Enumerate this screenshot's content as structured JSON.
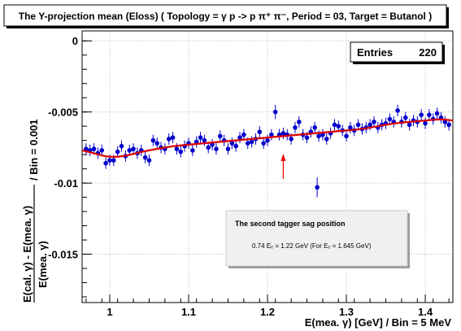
{
  "title": "The Y-projection mean (Eloss) ( Topology = γ p -> p π⁺ π⁻, Period = 03, Target = Butanol )",
  "stats": {
    "label": "Entries",
    "value": "220"
  },
  "annotation": {
    "title": "The second tagger sag position",
    "body": "0.74 Eₑ = 1.22 GeV (For Eₑ = 1.645 GeV)"
  },
  "colors": {
    "points": "#0000cc",
    "fit": "#dd0000",
    "arrow": "#ee0000",
    "grid": "#bbbbbb"
  },
  "chart_data": {
    "type": "scatter",
    "xlabel": "E(mea. γ) [GeV] / Bin = 5 MeV",
    "ylabel_numerator": "E(cal. γ) - E(mea. γ)",
    "ylabel_denominator": "E(mea. γ)",
    "ylabel_suffix": "/ Bin = 0.001",
    "xlim": [
      0.965,
      1.435
    ],
    "ylim": [
      -0.0184,
      0.0007
    ],
    "xticks": [
      1,
      1.1,
      1.2,
      1.3,
      1.4
    ],
    "xtick_labels": [
      "1",
      "1.1",
      "1.2",
      "1.3",
      "1.4"
    ],
    "yticks": [
      0,
      -0.005,
      -0.01,
      -0.015
    ],
    "ytick_labels": [
      "0",
      "-0.005",
      "-0.01",
      "-0.015"
    ],
    "grid": true,
    "arrow_x": 1.22,
    "outlier": {
      "x": 1.263,
      "y": -0.0103,
      "err": 0.0007
    },
    "points": [
      [
        0.97,
        -0.0076,
        0.0004
      ],
      [
        0.975,
        -0.0077,
        0.0004
      ],
      [
        0.98,
        -0.0076,
        0.0004
      ],
      [
        0.985,
        -0.0079,
        0.0004
      ],
      [
        0.99,
        -0.0077,
        0.0004
      ],
      [
        0.995,
        -0.0086,
        0.0004
      ],
      [
        1.0,
        -0.0084,
        0.0004
      ],
      [
        1.005,
        -0.0084,
        0.0004
      ],
      [
        1.01,
        -0.0078,
        0.0004
      ],
      [
        1.015,
        -0.0074,
        0.0004
      ],
      [
        1.02,
        -0.0081,
        0.0004
      ],
      [
        1.025,
        -0.0077,
        0.0004
      ],
      [
        1.03,
        -0.0076,
        0.0004
      ],
      [
        1.035,
        -0.0079,
        0.0004
      ],
      [
        1.04,
        -0.0077,
        0.0004
      ],
      [
        1.045,
        -0.0082,
        0.0004
      ],
      [
        1.05,
        -0.0084,
        0.0004
      ],
      [
        1.055,
        -0.007,
        0.0004
      ],
      [
        1.06,
        -0.0072,
        0.0004
      ],
      [
        1.065,
        -0.0075,
        0.0004
      ],
      [
        1.07,
        -0.0076,
        0.0004
      ],
      [
        1.075,
        -0.0069,
        0.0004
      ],
      [
        1.08,
        -0.0068,
        0.0004
      ],
      [
        1.085,
        -0.0076,
        0.0004
      ],
      [
        1.09,
        -0.0078,
        0.0004
      ],
      [
        1.095,
        -0.0074,
        0.0004
      ],
      [
        1.1,
        -0.0072,
        0.0004
      ],
      [
        1.105,
        -0.0077,
        0.0004
      ],
      [
        1.11,
        -0.0071,
        0.0004
      ],
      [
        1.115,
        -0.0068,
        0.0004
      ],
      [
        1.12,
        -0.007,
        0.0004
      ],
      [
        1.125,
        -0.0075,
        0.0004
      ],
      [
        1.13,
        -0.0073,
        0.0004
      ],
      [
        1.135,
        -0.0076,
        0.0004
      ],
      [
        1.14,
        -0.0067,
        0.0004
      ],
      [
        1.145,
        -0.007,
        0.0004
      ],
      [
        1.15,
        -0.0076,
        0.0004
      ],
      [
        1.155,
        -0.0072,
        0.0004
      ],
      [
        1.16,
        -0.0074,
        0.0004
      ],
      [
        1.165,
        -0.0068,
        0.0004
      ],
      [
        1.17,
        -0.0066,
        0.0004
      ],
      [
        1.175,
        -0.0072,
        0.0004
      ],
      [
        1.18,
        -0.0071,
        0.0004
      ],
      [
        1.185,
        -0.0069,
        0.0004
      ],
      [
        1.19,
        -0.0064,
        0.0004
      ],
      [
        1.195,
        -0.0072,
        0.0004
      ],
      [
        1.2,
        -0.007,
        0.0004
      ],
      [
        1.205,
        -0.0066,
        0.0004
      ],
      [
        1.21,
        -0.005,
        0.0005
      ],
      [
        1.215,
        -0.0066,
        0.0004
      ],
      [
        1.22,
        -0.0065,
        0.0004
      ],
      [
        1.225,
        -0.0066,
        0.0004
      ],
      [
        1.23,
        -0.0069,
        0.0004
      ],
      [
        1.235,
        -0.0061,
        0.0004
      ],
      [
        1.24,
        -0.0057,
        0.0004
      ],
      [
        1.245,
        -0.0066,
        0.0004
      ],
      [
        1.25,
        -0.0068,
        0.0004
      ],
      [
        1.255,
        -0.0064,
        0.0004
      ],
      [
        1.26,
        -0.0061,
        0.0004
      ],
      [
        1.265,
        -0.0067,
        0.0004
      ],
      [
        1.27,
        -0.0066,
        0.0004
      ],
      [
        1.275,
        -0.0069,
        0.0004
      ],
      [
        1.28,
        -0.0065,
        0.0004
      ],
      [
        1.285,
        -0.0059,
        0.0004
      ],
      [
        1.29,
        -0.006,
        0.0004
      ],
      [
        1.295,
        -0.0063,
        0.0004
      ],
      [
        1.3,
        -0.0067,
        0.0004
      ],
      [
        1.305,
        -0.0061,
        0.0004
      ],
      [
        1.31,
        -0.0063,
        0.0004
      ],
      [
        1.315,
        -0.0059,
        0.0004
      ],
      [
        1.32,
        -0.0062,
        0.0004
      ],
      [
        1.325,
        -0.0061,
        0.0004
      ],
      [
        1.33,
        -0.0059,
        0.0004
      ],
      [
        1.335,
        -0.0057,
        0.0004
      ],
      [
        1.34,
        -0.0061,
        0.0004
      ],
      [
        1.345,
        -0.0059,
        0.0004
      ],
      [
        1.35,
        -0.0058,
        0.0004
      ],
      [
        1.355,
        -0.0055,
        0.0004
      ],
      [
        1.36,
        -0.0057,
        0.0004
      ],
      [
        1.365,
        -0.0049,
        0.0004
      ],
      [
        1.37,
        -0.0057,
        0.0004
      ],
      [
        1.375,
        -0.0054,
        0.0004
      ],
      [
        1.38,
        -0.0059,
        0.0004
      ],
      [
        1.385,
        -0.0056,
        0.0004
      ],
      [
        1.39,
        -0.0057,
        0.0004
      ],
      [
        1.395,
        -0.0052,
        0.0004
      ],
      [
        1.4,
        -0.0058,
        0.0004
      ],
      [
        1.405,
        -0.0052,
        0.0004
      ],
      [
        1.41,
        -0.0055,
        0.0004
      ],
      [
        1.415,
        -0.0051,
        0.0004
      ],
      [
        1.42,
        -0.0054,
        0.0004
      ],
      [
        1.425,
        -0.0057,
        0.0004
      ],
      [
        1.43,
        -0.0059,
        0.0004
      ]
    ],
    "fit_curve": [
      [
        0.965,
        -0.0077
      ],
      [
        0.98,
        -0.0079
      ],
      [
        1.0,
        -0.0082
      ],
      [
        1.02,
        -0.0081
      ],
      [
        1.04,
        -0.0078
      ],
      [
        1.06,
        -0.0076
      ],
      [
        1.08,
        -0.0074
      ],
      [
        1.1,
        -0.0073
      ],
      [
        1.12,
        -0.0072
      ],
      [
        1.14,
        -0.0071
      ],
      [
        1.16,
        -0.007
      ],
      [
        1.18,
        -0.0069
      ],
      [
        1.2,
        -0.0068
      ],
      [
        1.22,
        -0.0067
      ],
      [
        1.24,
        -0.0066
      ],
      [
        1.26,
        -0.0065
      ],
      [
        1.28,
        -0.0064
      ],
      [
        1.3,
        -0.0063
      ],
      [
        1.32,
        -0.0062
      ],
      [
        1.34,
        -0.006
      ],
      [
        1.36,
        -0.0058
      ],
      [
        1.38,
        -0.0057
      ],
      [
        1.4,
        -0.0056
      ],
      [
        1.42,
        -0.0055
      ],
      [
        1.435,
        -0.0056
      ]
    ]
  }
}
